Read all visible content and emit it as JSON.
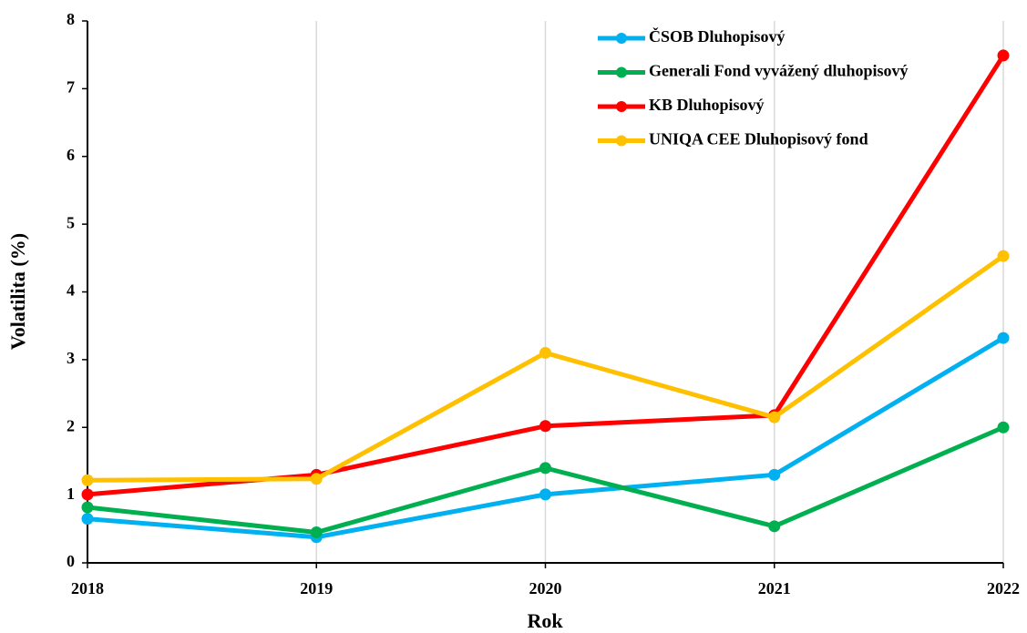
{
  "chart_data": {
    "type": "line",
    "x_label": "Rok",
    "y_label": "Volatilita (%)",
    "x": [
      2018,
      2019,
      2020,
      2021,
      2022
    ],
    "xlim": [
      2018,
      2022
    ],
    "xticks": [
      2018,
      2019,
      2020,
      2021,
      2022
    ],
    "ylim": [
      0,
      8
    ],
    "yticks": [
      0,
      1,
      2,
      3,
      4,
      5,
      6,
      7,
      8
    ],
    "grid": "x",
    "legend": "top-right",
    "series": [
      {
        "name": "ČSOB Dluhopisový",
        "color": "#00b0f0",
        "values": [
          0.65,
          0.38,
          1.01,
          1.3,
          3.32
        ]
      },
      {
        "name": "Generali Fond vyvážený dluhopisový",
        "color": "#00b050",
        "values": [
          0.82,
          0.45,
          1.4,
          0.54,
          2.0
        ]
      },
      {
        "name": "KB Dluhopisový",
        "color": "#ff0000",
        "values": [
          1.01,
          1.3,
          2.02,
          2.18,
          7.49
        ]
      },
      {
        "name": "UNIQA CEE Dluhopisový fond",
        "color": "#ffc000",
        "values": [
          1.22,
          1.24,
          3.1,
          2.15,
          4.53
        ]
      }
    ]
  }
}
